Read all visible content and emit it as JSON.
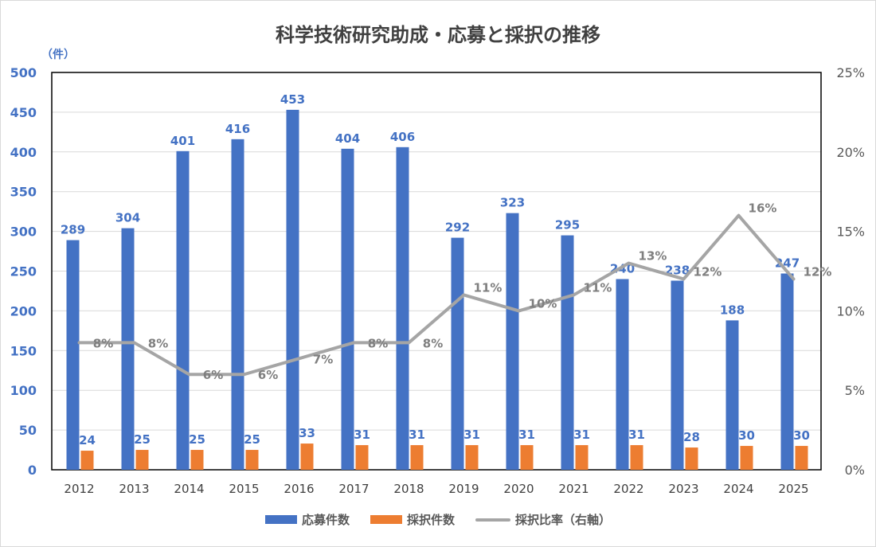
{
  "chart_data": {
    "type": "bar",
    "title": "科学技術研究助成・応募と採択の推移",
    "y_unit": "（件）",
    "categories": [
      "2012",
      "2013",
      "2014",
      "2015",
      "2016",
      "2017",
      "2018",
      "2019",
      "2020",
      "2021",
      "2022",
      "2023",
      "2024",
      "2025"
    ],
    "series": [
      {
        "name": "応募件数",
        "type": "bar",
        "axis": "left",
        "color": "#4472c4",
        "values": [
          289,
          304,
          401,
          416,
          453,
          404,
          406,
          292,
          323,
          295,
          240,
          238,
          188,
          247
        ]
      },
      {
        "name": "採択件数",
        "type": "bar",
        "axis": "left",
        "color": "#ed7d31",
        "values": [
          24,
          25,
          25,
          25,
          33,
          31,
          31,
          31,
          31,
          31,
          31,
          28,
          30,
          30
        ]
      },
      {
        "name": "採択比率（右軸）",
        "type": "line",
        "axis": "right",
        "color": "#a5a5a5",
        "values": [
          8,
          8,
          6,
          6,
          7,
          8,
          8,
          11,
          10,
          11,
          13,
          12,
          16,
          12
        ],
        "labels": [
          "8%",
          "8%",
          "6%",
          "6%",
          "7%",
          "8%",
          "8%",
          "11%",
          "10%",
          "11%",
          "13%",
          "12%",
          "16%",
          "12%"
        ]
      }
    ],
    "y_left": {
      "min": 0,
      "max": 500,
      "ticks": [
        "0",
        "50",
        "100",
        "150",
        "200",
        "250",
        "300",
        "350",
        "400",
        "450",
        "500"
      ]
    },
    "y_right": {
      "min": 0,
      "max": 25,
      "ticks": [
        "0%",
        "5%",
        "10%",
        "15%",
        "20%",
        "25%"
      ]
    },
    "grid": true,
    "legend_position": "bottom"
  }
}
